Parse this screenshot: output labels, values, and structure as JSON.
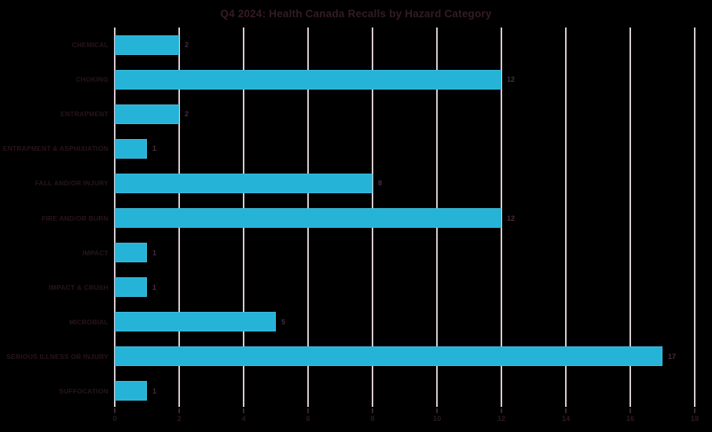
{
  "title": "Q4 2024: Health Canada Recalls by Hazard Category",
  "chart_data": {
    "type": "bar",
    "orientation": "horizontal",
    "title": "Q4 2024: Health Canada Recalls by Hazard Category",
    "categories": [
      "CHEMICAL",
      "CHOKING",
      "ENTRAPMENT",
      "ENTRAPMENT & ASPHIXIATION",
      "FALL AND/OR INJURY",
      "FIRE AND/OR BURN",
      "IMPACT",
      "IMPACT & CRUSH",
      "MICROBIAL",
      "SERIOUS ILLNESS OR INJURY",
      "SUFFOCATION"
    ],
    "values": [
      2,
      12,
      2,
      1,
      8,
      12,
      1,
      1,
      5,
      17,
      1
    ],
    "value_labels": [
      "2",
      "12",
      "2",
      "1",
      "8",
      "12",
      "1",
      "1",
      "5",
      "17",
      "1"
    ],
    "xlabel": "",
    "ylabel": "",
    "xlim": [
      0,
      18
    ],
    "xticks": [
      0,
      2,
      4,
      6,
      8,
      10,
      12,
      14,
      16,
      18
    ],
    "grid": "vertical-only",
    "legend": "none",
    "colors": {
      "background": "#000000",
      "bar": "#26b3d8",
      "gridline": "#d9ccd3",
      "title": "#351c23",
      "category_label": "#2a141b",
      "value_label": "#4d2c3e",
      "tick_label": "#2b1a20",
      "tick_mark": "#3a2930"
    }
  }
}
